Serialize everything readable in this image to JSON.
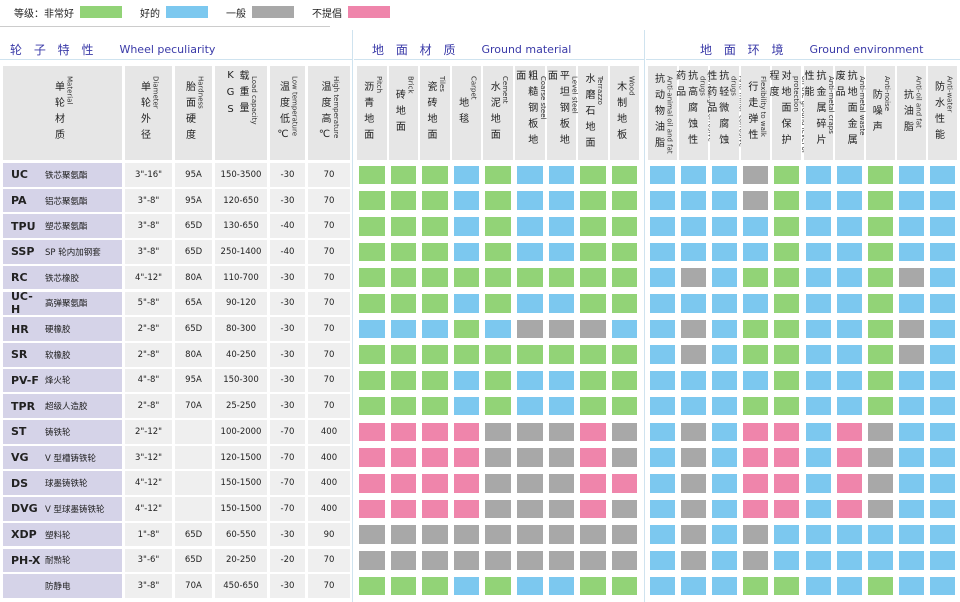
{
  "legend": {
    "prefix": "等级：",
    "items": [
      {
        "label": "非常好",
        "color": "#92d377"
      },
      {
        "label": "好的",
        "color": "#7cc8ef"
      },
      {
        "label": "一般",
        "color": "#a8a8a8"
      },
      {
        "label": "不提倡",
        "color": "#ef85ab"
      }
    ]
  },
  "sections": [
    {
      "zh": "轮 子 特 性",
      "en": "Wheel peculiarity"
    },
    {
      "zh": "地 面 材 质",
      "en": "Ground material"
    },
    {
      "zh": "地 面 环 境",
      "en": "Ground environment"
    }
  ],
  "wheel_columns": [
    {
      "zh": "单轮材质",
      "en": "Material"
    },
    {
      "zh": "单轮外径",
      "en": "Diameter"
    },
    {
      "zh": "胎面硬度",
      "en": "Hardness"
    },
    {
      "zh": "载重量KGS",
      "en": "Load capacity"
    },
    {
      "zh": "温度低℃",
      "en": "Low temperature"
    },
    {
      "zh": "温度高℃",
      "en": "High temperature"
    }
  ],
  "ground_columns": [
    {
      "zh": "沥青地面",
      "en": "Pitch"
    },
    {
      "zh": "砖地面",
      "en": "Brick"
    },
    {
      "zh": "瓷砖地面",
      "en": "Tiles"
    },
    {
      "zh": "地毯",
      "en": "Carpet"
    },
    {
      "zh": "水泥地面",
      "en": "Cement"
    },
    {
      "zh": "粗糙钢板地面",
      "en": "Coarse steel"
    },
    {
      "zh": "平坦钢板地面",
      "en": "Level steel"
    },
    {
      "zh": "水磨石地面",
      "en": "Terrazzo"
    },
    {
      "zh": "木制地板",
      "en": "Wood"
    }
  ],
  "environment_columns": [
    {
      "zh": "抗动物油脂",
      "en": "Anti-animal oil and fat"
    },
    {
      "zh": "抗高腐蚀性药品",
      "en": "Anti-high corrosive drugs"
    },
    {
      "zh": "抗轻微腐蚀性药品",
      "en": "Anti-minor corrosive drugs"
    },
    {
      "zh": "行走弹性",
      "en": "Flexibility to walk"
    },
    {
      "zh": "对地面保护程度",
      "en": "on the ground level of protection"
    },
    {
      "zh": "抗金属碎片性能",
      "en": "Anti-metal craps"
    },
    {
      "zh": "抗地面金属废品",
      "en": "Anti-metal waste"
    },
    {
      "zh": "防噪声",
      "en": "Anti-noise"
    },
    {
      "zh": "抗油脂",
      "en": "Anti-oil and fat"
    },
    {
      "zh": "防水性能",
      "en": "Anti-water"
    }
  ],
  "rows": [
    {
      "code": "UC",
      "name": "铁芯聚氨酯",
      "diameter": "3\"-16\"",
      "hardness": "95A",
      "load": "150-3500",
      "low": -30,
      "high": 70,
      "ground": [
        0,
        0,
        0,
        1,
        0,
        1,
        1,
        0,
        0
      ],
      "environment": [
        1,
        1,
        1,
        2,
        0,
        1,
        1,
        0,
        1,
        1
      ]
    },
    {
      "code": "PA",
      "name": "铝芯聚氨酯",
      "diameter": "3\"-8\"",
      "hardness": "95A",
      "load": "120-650",
      "low": -30,
      "high": 70,
      "ground": [
        0,
        0,
        0,
        1,
        0,
        1,
        1,
        0,
        0
      ],
      "environment": [
        1,
        1,
        1,
        2,
        0,
        1,
        1,
        0,
        1,
        1
      ]
    },
    {
      "code": "TPU",
      "name": "塑芯聚氨酯",
      "diameter": "3\"-8\"",
      "hardness": "65D",
      "load": "130-650",
      "low": -40,
      "high": 70,
      "ground": [
        0,
        0,
        0,
        1,
        0,
        1,
        1,
        0,
        0
      ],
      "environment": [
        1,
        1,
        1,
        1,
        0,
        1,
        1,
        0,
        1,
        1
      ]
    },
    {
      "code": "SSP",
      "name": "SP 轮内加钢套",
      "diameter": "3\"-8\"",
      "hardness": "65D",
      "load": "250-1400",
      "low": -40,
      "high": 70,
      "ground": [
        0,
        0,
        0,
        1,
        0,
        1,
        1,
        0,
        0
      ],
      "environment": [
        1,
        1,
        1,
        1,
        0,
        1,
        1,
        0,
        1,
        1
      ]
    },
    {
      "code": "RC",
      "name": "铁芯橡胶",
      "diameter": "4\"-12\"",
      "hardness": "80A",
      "load": "110-700",
      "low": -30,
      "high": 70,
      "ground": [
        0,
        0,
        0,
        0,
        0,
        0,
        0,
        0,
        0
      ],
      "environment": [
        1,
        2,
        1,
        0,
        0,
        1,
        1,
        0,
        2,
        1
      ]
    },
    {
      "code": "UC-H",
      "name": "高弹聚氨酯",
      "diameter": "5\"-8\"",
      "hardness": "65A",
      "load": "90-120",
      "low": -30,
      "high": 70,
      "ground": [
        0,
        0,
        0,
        1,
        0,
        1,
        1,
        0,
        0
      ],
      "environment": [
        1,
        1,
        1,
        1,
        0,
        1,
        1,
        0,
        1,
        1
      ]
    },
    {
      "code": "HR",
      "name": "硬橡胶",
      "diameter": "2\"-8\"",
      "hardness": "65D",
      "load": "80-300",
      "low": -30,
      "high": 70,
      "ground": [
        1,
        1,
        1,
        0,
        1,
        2,
        2,
        2,
        1
      ],
      "environment": [
        1,
        2,
        1,
        0,
        0,
        1,
        1,
        0,
        2,
        1
      ]
    },
    {
      "code": "SR",
      "name": "软橡胶",
      "diameter": "2\"-8\"",
      "hardness": "80A",
      "load": "40-250",
      "low": -30,
      "high": 70,
      "ground": [
        0,
        0,
        0,
        0,
        0,
        0,
        0,
        0,
        0
      ],
      "environment": [
        1,
        2,
        1,
        0,
        0,
        1,
        1,
        0,
        2,
        1
      ]
    },
    {
      "code": "PV-F",
      "name": "烽火轮",
      "diameter": "4\"-8\"",
      "hardness": "95A",
      "load": "150-300",
      "low": -30,
      "high": 70,
      "ground": [
        0,
        0,
        0,
        1,
        0,
        1,
        1,
        0,
        0
      ],
      "environment": [
        1,
        1,
        1,
        1,
        0,
        1,
        1,
        0,
        1,
        1
      ]
    },
    {
      "code": "TPR",
      "name": "超级人造胶",
      "diameter": "2\"-8\"",
      "hardness": "70A",
      "load": "25-250",
      "low": -30,
      "high": 70,
      "ground": [
        0,
        0,
        0,
        1,
        0,
        1,
        1,
        0,
        0
      ],
      "environment": [
        1,
        1,
        1,
        0,
        0,
        1,
        1,
        0,
        1,
        1
      ]
    },
    {
      "code": "ST",
      "name": "铸铁轮",
      "diameter": "2\"-12\"",
      "hardness": null,
      "load": "100-2000",
      "low": -70,
      "high": 400,
      "ground": [
        3,
        3,
        3,
        3,
        2,
        2,
        2,
        3,
        2
      ],
      "environment": [
        1,
        2,
        1,
        3,
        3,
        1,
        3,
        2,
        1,
        1
      ]
    },
    {
      "code": "VG",
      "name": "V 型槽铸铁轮",
      "diameter": "3\"-12\"",
      "hardness": null,
      "load": "120-1500",
      "low": -70,
      "high": 400,
      "ground": [
        3,
        3,
        3,
        3,
        2,
        2,
        2,
        3,
        2
      ],
      "environment": [
        1,
        2,
        1,
        3,
        3,
        1,
        3,
        2,
        1,
        1
      ]
    },
    {
      "code": "DS",
      "name": "球墨铸铁轮",
      "diameter": "4\"-12\"",
      "hardness": null,
      "load": "150-1500",
      "low": -70,
      "high": 400,
      "ground": [
        3,
        3,
        3,
        3,
        2,
        2,
        2,
        3,
        3
      ],
      "environment": [
        1,
        2,
        1,
        3,
        3,
        1,
        3,
        2,
        1,
        1
      ]
    },
    {
      "code": "DVG",
      "name": "V 型球墨铸铁轮",
      "diameter": "4\"-12\"",
      "hardness": null,
      "load": "150-1500",
      "low": -70,
      "high": 400,
      "ground": [
        3,
        3,
        3,
        3,
        2,
        2,
        2,
        3,
        2
      ],
      "environment": [
        1,
        2,
        1,
        3,
        3,
        1,
        3,
        2,
        1,
        1
      ]
    },
    {
      "code": "XDP",
      "name": "塑料轮",
      "diameter": "1\"-8\"",
      "hardness": "65D",
      "load": "60-550",
      "low": -30,
      "high": 90,
      "ground": [
        2,
        2,
        2,
        2,
        2,
        2,
        2,
        2,
        2
      ],
      "environment": [
        1,
        2,
        1,
        2,
        1,
        1,
        1,
        1,
        1,
        1
      ]
    },
    {
      "code": "PH-X",
      "name": "耐㸃轮",
      "diameter": "3\"-6\"",
      "hardness": "65D",
      "load": "20-250",
      "low": -20,
      "high": 70,
      "ground": [
        2,
        2,
        2,
        2,
        2,
        2,
        2,
        2,
        2
      ],
      "environment": [
        1,
        2,
        1,
        2,
        1,
        1,
        1,
        1,
        1,
        1
      ]
    },
    {
      "code": null,
      "name": "防静电",
      "diameter": "3\"-8\"",
      "hardness": "70A",
      "load": "450-650",
      "low": -30,
      "high": 70,
      "ground": [
        0,
        0,
        0,
        1,
        0,
        1,
        1,
        0,
        0
      ],
      "environment": [
        1,
        1,
        1,
        0,
        0,
        1,
        1,
        0,
        1,
        1
      ]
    }
  ]
}
